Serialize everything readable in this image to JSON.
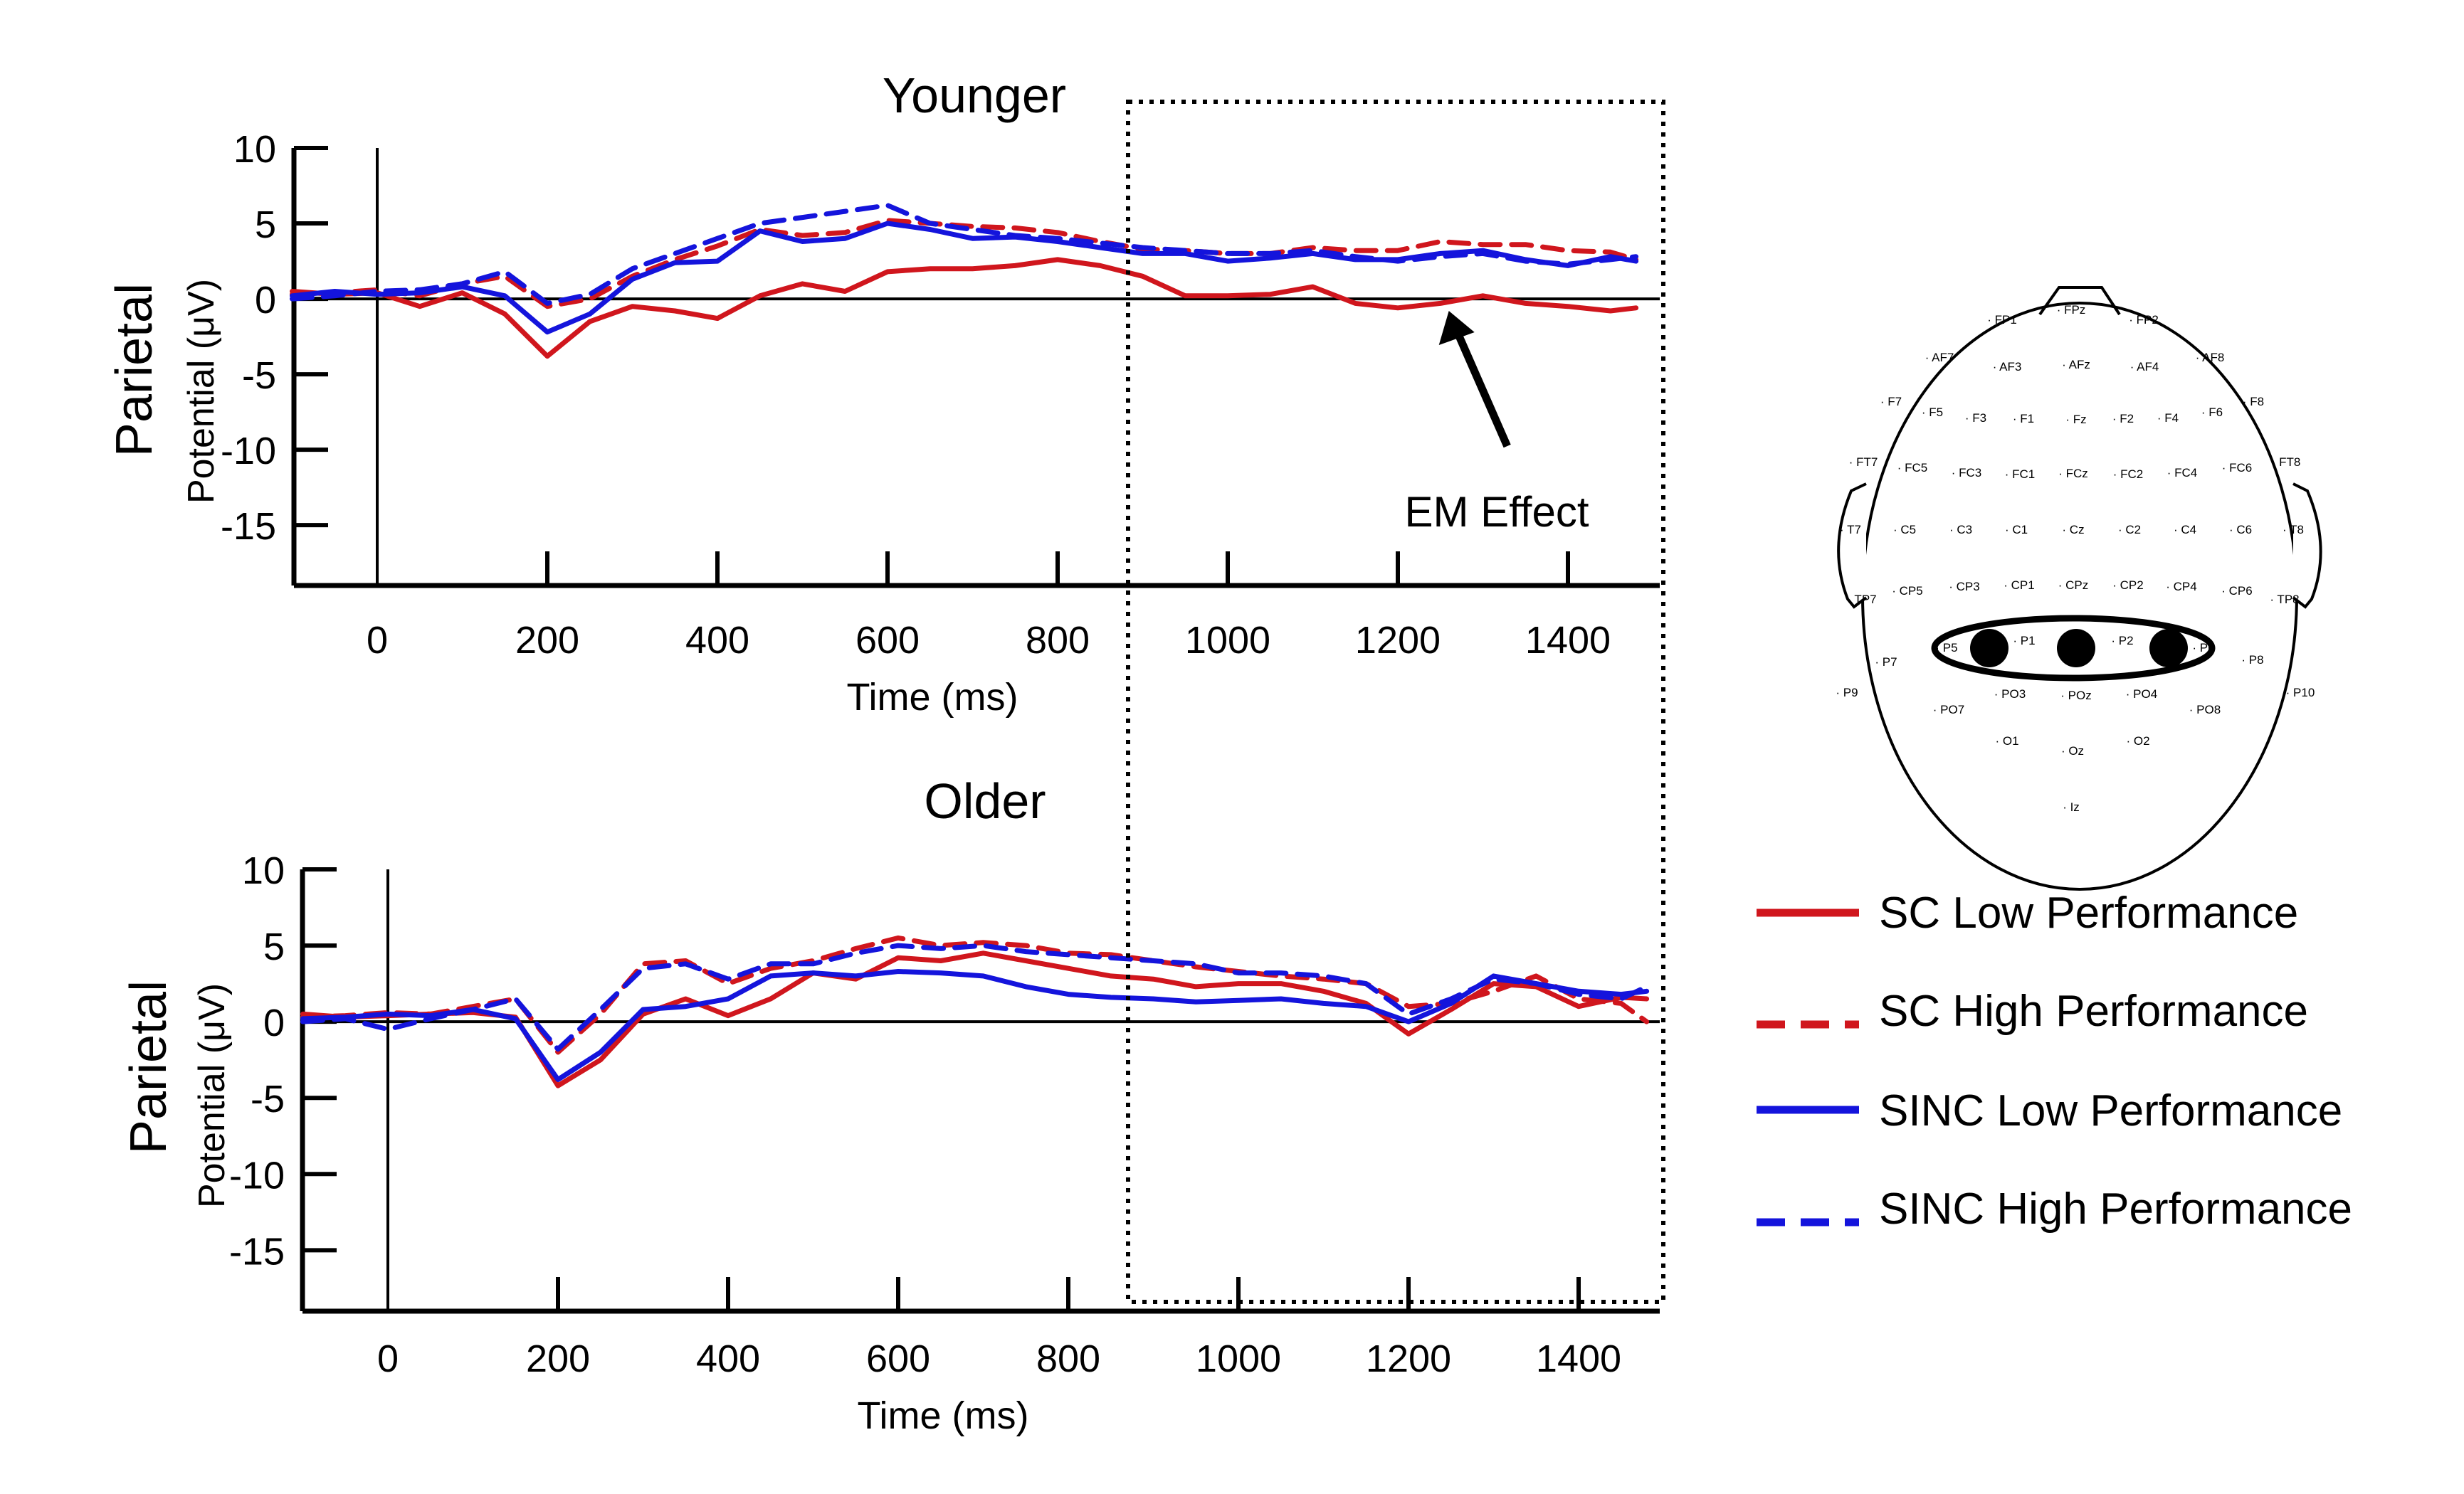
{
  "chart_data": [
    {
      "type": "line",
      "title": "Younger",
      "region_label": "Parietal",
      "ylabel": "Potential (μV)",
      "xlabel": "Time (ms)",
      "xlim": [
        -100,
        1500
      ],
      "ylim": [
        -19,
        10
      ],
      "xticks": [
        0,
        200,
        400,
        600,
        800,
        1000,
        1200,
        1400
      ],
      "yticks": [
        10,
        5,
        0,
        -5,
        -10,
        -15
      ],
      "annotation": "EM Effect",
      "annotation_target": [
        1260,
        -0.8
      ],
      "x": [
        -100,
        -50,
        0,
        50,
        100,
        150,
        200,
        250,
        300,
        350,
        400,
        450,
        500,
        550,
        600,
        650,
        700,
        750,
        800,
        850,
        900,
        950,
        1000,
        1050,
        1100,
        1150,
        1200,
        1250,
        1300,
        1350,
        1400,
        1450,
        1480
      ],
      "series": [
        {
          "name": "SC Low Performance",
          "color": "#d0161d",
          "dash": "solid",
          "values": [
            0.5,
            0.3,
            0.4,
            -0.5,
            0.4,
            -1.0,
            -3.8,
            -1.5,
            -0.5,
            -0.8,
            -1.3,
            0.2,
            1.0,
            0.5,
            1.8,
            2.0,
            2.0,
            2.2,
            2.6,
            2.2,
            1.5,
            0.2,
            0.2,
            0.3,
            0.8,
            -0.3,
            -0.6,
            -0.3,
            0.2,
            -0.3,
            -0.5,
            -0.8,
            -0.6
          ]
        },
        {
          "name": "SC High Performance",
          "color": "#d0161d",
          "dash": "dashed",
          "values": [
            0.3,
            0.4,
            0.6,
            0.2,
            1.0,
            1.5,
            -0.5,
            0.0,
            1.5,
            2.6,
            3.5,
            4.6,
            4.2,
            4.4,
            5.2,
            5.0,
            4.8,
            4.7,
            4.4,
            3.8,
            3.3,
            3.2,
            3.0,
            3.0,
            3.4,
            3.2,
            3.2,
            3.8,
            3.6,
            3.6,
            3.2,
            3.1,
            2.6
          ]
        },
        {
          "name": "SINC Low Performance",
          "color": "#1414dc",
          "dash": "solid",
          "values": [
            0.2,
            0.5,
            0.3,
            0.4,
            0.8,
            0.2,
            -2.2,
            -1.0,
            1.3,
            2.4,
            2.5,
            4.5,
            3.8,
            4.0,
            5.0,
            4.6,
            4.0,
            4.1,
            3.8,
            3.4,
            3.0,
            3.0,
            2.5,
            2.7,
            3.0,
            2.6,
            2.6,
            3.0,
            3.2,
            2.6,
            2.2,
            2.8,
            2.5
          ]
        },
        {
          "name": "SINC High Performance",
          "color": "#1414dc",
          "dash": "dashed",
          "values": [
            0.0,
            0.2,
            0.5,
            0.6,
            1.0,
            1.8,
            -0.3,
            0.3,
            2.0,
            3.0,
            4.0,
            5.0,
            5.4,
            5.8,
            6.2,
            5.0,
            4.6,
            4.2,
            4.0,
            3.7,
            3.4,
            3.2,
            3.0,
            3.0,
            3.2,
            2.8,
            2.5,
            2.8,
            3.0,
            2.5,
            2.3,
            2.6,
            2.8
          ]
        }
      ]
    },
    {
      "type": "line",
      "title": "Older",
      "region_label": "Parietal",
      "ylabel": "Potential (μV)",
      "xlabel": "Time (ms)",
      "xlim": [
        -100,
        1500
      ],
      "ylim": [
        -19,
        10
      ],
      "xticks": [
        0,
        200,
        400,
        600,
        800,
        1000,
        1200,
        1400
      ],
      "yticks": [
        10,
        5,
        0,
        -5,
        -10,
        -15
      ],
      "x": [
        -100,
        -50,
        0,
        50,
        100,
        150,
        200,
        250,
        300,
        350,
        400,
        450,
        500,
        550,
        600,
        650,
        700,
        750,
        800,
        850,
        900,
        950,
        1000,
        1050,
        1100,
        1150,
        1200,
        1250,
        1300,
        1350,
        1400,
        1450,
        1480
      ],
      "series": [
        {
          "name": "SC Low Performance",
          "color": "#d0161d",
          "dash": "solid",
          "values": [
            0.5,
            0.3,
            0.4,
            0.5,
            0.6,
            0.3,
            -4.2,
            -2.5,
            0.5,
            1.5,
            0.4,
            1.5,
            3.2,
            2.8,
            4.2,
            4.0,
            4.5,
            4.0,
            3.5,
            3.0,
            2.8,
            2.3,
            2.5,
            2.5,
            2.0,
            1.2,
            -0.8,
            0.8,
            2.5,
            2.3,
            1.0,
            1.6,
            1.5
          ]
        },
        {
          "name": "SC High Performance",
          "color": "#d0161d",
          "dash": "dashed",
          "values": [
            0.3,
            0.4,
            0.6,
            0.5,
            1.0,
            1.5,
            -2.0,
            0.5,
            3.8,
            4.0,
            2.5,
            3.5,
            4.0,
            4.8,
            5.5,
            5.0,
            5.2,
            5.0,
            4.5,
            4.4,
            4.0,
            3.6,
            3.3,
            3.0,
            2.8,
            2.5,
            1.0,
            1.2,
            2.0,
            3.0,
            1.5,
            1.2,
            0.0
          ]
        },
        {
          "name": "SINC Low Performance",
          "color": "#1414dc",
          "dash": "solid",
          "values": [
            0.2,
            0.3,
            0.5,
            0.4,
            0.8,
            0.2,
            -3.8,
            -2.0,
            0.8,
            1.0,
            1.5,
            3.0,
            3.2,
            3.0,
            3.3,
            3.2,
            3.0,
            2.3,
            1.8,
            1.6,
            1.5,
            1.3,
            1.4,
            1.5,
            1.2,
            1.0,
            0.0,
            1.2,
            3.0,
            2.5,
            2.0,
            1.8,
            2.0
          ]
        },
        {
          "name": "SINC High Performance",
          "color": "#1414dc",
          "dash": "dashed",
          "values": [
            0.0,
            0.2,
            -0.5,
            0.2,
            0.8,
            1.5,
            -1.8,
            0.8,
            3.5,
            3.8,
            2.8,
            3.8,
            3.8,
            4.5,
            5.0,
            4.8,
            5.0,
            4.6,
            4.4,
            4.2,
            4.0,
            3.8,
            3.2,
            3.2,
            3.0,
            2.5,
            0.5,
            1.5,
            2.8,
            2.5,
            1.8,
            1.5,
            2.3
          ]
        }
      ]
    }
  ],
  "legend": [
    {
      "label": "SC Low Performance",
      "color": "#d0161d",
      "dash": "solid"
    },
    {
      "label": "SC High Performance",
      "color": "#d0161d",
      "dash": "dashed"
    },
    {
      "label": "SINC Low Performance",
      "color": "#1414dc",
      "dash": "solid"
    },
    {
      "label": "SINC High Performance",
      "color": "#1414dc",
      "dash": "dashed"
    }
  ],
  "electrode_map": {
    "labels": [
      "FP1",
      "FPz",
      "FP2",
      "AF7",
      "AF3",
      "AFz",
      "AF4",
      "AF8",
      "F7",
      "F5",
      "F3",
      "F1",
      "Fz",
      "F2",
      "F4",
      "F6",
      "F8",
      "FT7",
      "FC5",
      "FC3",
      "FC1",
      "FCz",
      "FC2",
      "FC4",
      "FC6",
      "FT8",
      "T7",
      "C5",
      "C3",
      "C1",
      "Cz",
      "C2",
      "C4",
      "C6",
      "T8",
      "TP7",
      "CP5",
      "CP3",
      "CP1",
      "CPz",
      "CP2",
      "CP4",
      "CP6",
      "TP8",
      "P7",
      "P5",
      "P1",
      "P2",
      "P6",
      "P8",
      "P9",
      "PO7",
      "PO3",
      "POz",
      "PO4",
      "PO8",
      "P10",
      "O1",
      "Oz",
      "O2",
      "Iz"
    ],
    "highlighted": [
      "P5",
      "Pz",
      "P6"
    ]
  }
}
